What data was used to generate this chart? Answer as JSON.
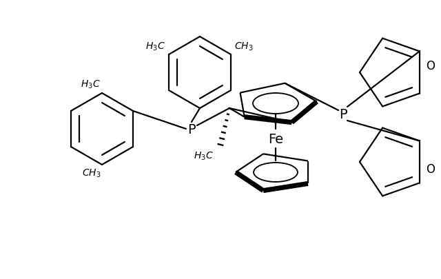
{
  "bg_color": "#ffffff",
  "line_color": "#000000",
  "lw": 1.6,
  "fig_width": 6.4,
  "fig_height": 4.06,
  "dpi": 100,
  "xlim": [
    0,
    640
  ],
  "ylim": [
    0,
    406
  ]
}
